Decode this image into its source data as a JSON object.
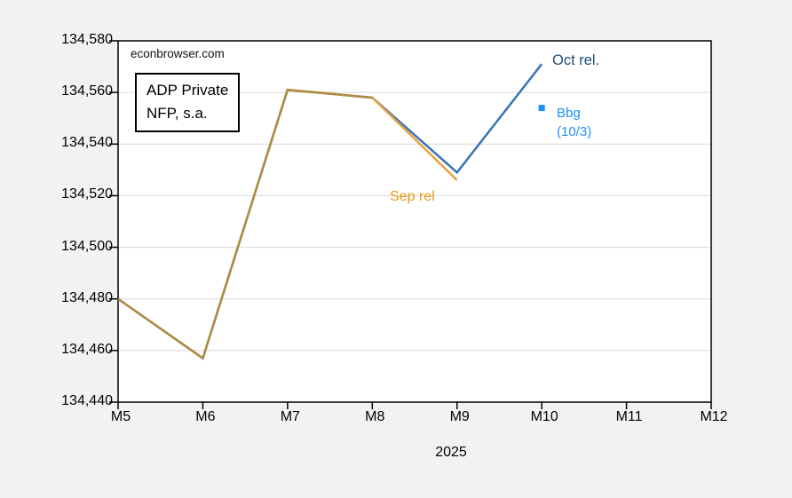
{
  "chart_data": {
    "type": "line",
    "watermark": "econbrowser.com",
    "title_box_line1": "ADP Private",
    "title_box_line2": "NFP, s.a.",
    "x_label": "2025",
    "x_categories": [
      "M5",
      "M6",
      "M7",
      "M8",
      "M9",
      "M10",
      "M11",
      "M12"
    ],
    "y_ticks": [
      134440,
      134460,
      134480,
      134500,
      134520,
      134540,
      134560,
      134580
    ],
    "ylim": [
      134440,
      134580
    ],
    "grid": "horizontal",
    "legend_position": "inline-annotations",
    "series_labels": {
      "oct": "Oct rel.",
      "sep": "Sep rel"
    },
    "marker_label_line1": "Bbg",
    "marker_label_line2": "(10/3)",
    "series": [
      {
        "name": "Oct rel.",
        "color": "#3674B5",
        "x": [
          "M5",
          "M6",
          "M7",
          "M8",
          "M9",
          "M10"
        ],
        "values": [
          134480,
          134457,
          134561,
          134558,
          134529,
          134571
        ]
      },
      {
        "name": "Sep rel",
        "color": "#EAA23C",
        "overlap_color": "#B28B3D",
        "overlap_through": "M8",
        "x": [
          "M5",
          "M6",
          "M7",
          "M8",
          "M9"
        ],
        "values": [
          134480,
          134457,
          134561,
          134558,
          134526
        ]
      }
    ],
    "markers": [
      {
        "name": "Bbg (10/3)",
        "x": "M10",
        "value": 134554,
        "color": "#1E8FFF",
        "shape": "square"
      }
    ],
    "colors": {
      "background": "#F2F2F2",
      "plot_background": "#FFFFFF",
      "gridline": "#D9D9D9",
      "axis": "#000000",
      "oct_line": "#3674B5",
      "oct_label": "#1F4E79",
      "sep_line": "#EAA23C",
      "sep_overlap": "#B28B3D",
      "sep_label": "#E8980E",
      "bbg": "#1E8FFF"
    }
  }
}
